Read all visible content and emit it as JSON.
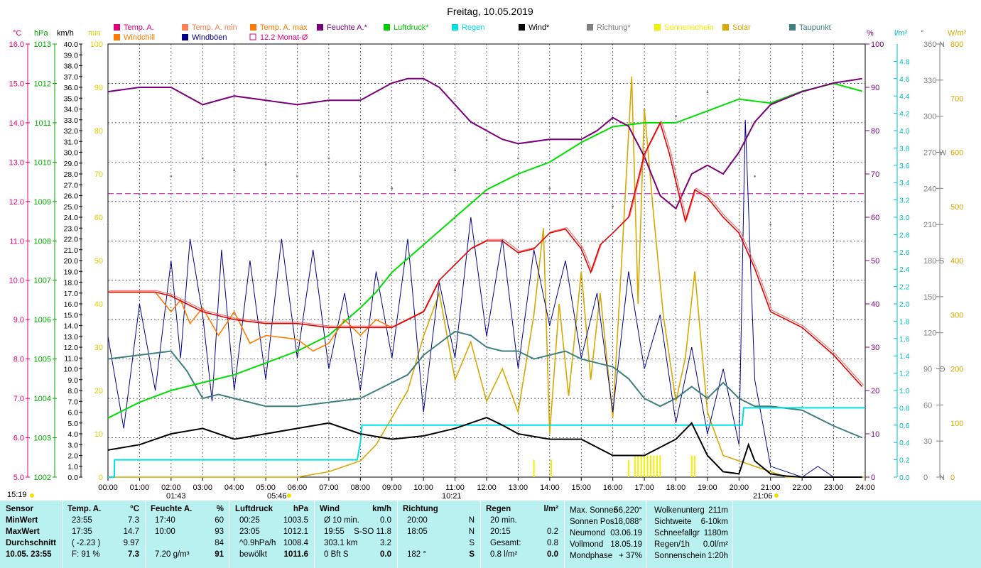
{
  "title": "Freitag, 10.05.2019",
  "legend": [
    {
      "label": "Temp. A.",
      "color": "#e0007c"
    },
    {
      "label": "Temp. A. min",
      "color": "#ff7f50"
    },
    {
      "label": "Temp. A. max",
      "color": "#ff7a00"
    },
    {
      "label": "Feuchte A.*",
      "color": "#7a007a"
    },
    {
      "label": "Luftdruck*",
      "color": "#00cc00"
    },
    {
      "label": "Regen",
      "color": "#00e0e0"
    },
    {
      "label": "Wind*",
      "color": "#000000"
    },
    {
      "label": "Richtung*",
      "color": "#808080"
    },
    {
      "label": "Sonnenschein",
      "color": "#f0f000"
    },
    {
      "label": "Solar",
      "color": "#d8a800"
    },
    {
      "label": "Taupunkt",
      "color": "#3f7f7f"
    },
    {
      "label": "Windchill",
      "color": "#ff7a00"
    },
    {
      "label": "Windböen",
      "color": "#00008b"
    },
    {
      "label": "12.2 Monat-Ø",
      "color": "#e0007c"
    }
  ],
  "units": {
    "temp": "°C",
    "press": "hPa",
    "wind": "km/h",
    "min": "min",
    "hum": "%",
    "rain": "l/m²",
    "dir": "°",
    "solar": "W/m²"
  },
  "axes": {
    "temp": [
      "16.0",
      "15.0",
      "14.0",
      "13.0",
      "12.0",
      "11.0",
      "10.0",
      "9.0",
      "8.0",
      "7.0",
      "6.0",
      "5.0"
    ],
    "press": [
      "1013",
      "1012",
      "1011",
      "1010",
      "1009",
      "1008",
      "1007",
      "1006",
      "1005",
      "1004",
      "1003",
      "1002"
    ],
    "wind": [
      "40.0",
      "39.0",
      "38.0",
      "37.0",
      "36.0",
      "35.0",
      "34.0",
      "33.0",
      "32.0",
      "31.0",
      "30.0",
      "29.0",
      "28.0",
      "27.0",
      "26.0",
      "25.0",
      "24.0",
      "23.0",
      "22.0",
      "21.0",
      "20.0",
      "19.0",
      "18.0",
      "17.0",
      "16.0",
      "15.0",
      "14.0",
      "13.0",
      "12.0",
      "11.0",
      "10.0",
      "9.0",
      "8.0",
      "7.0",
      "6.0",
      "5.0",
      "4.0",
      "3.0",
      "2.0",
      "1.0",
      "0.0"
    ],
    "minutes": [
      "100",
      "90",
      "80",
      "70",
      "60",
      "50",
      "40",
      "30",
      "20",
      "10",
      "0"
    ],
    "hum": [
      "100",
      "90",
      "80",
      "70",
      "60",
      "50",
      "40",
      "30",
      "20",
      "10",
      "0"
    ],
    "rain": [
      "4.8",
      "4.6",
      "4.4",
      "4.2",
      "4.0",
      "3.8",
      "3.6",
      "3.4",
      "3.2",
      "3.0",
      "2.8",
      "2.6",
      "2.4",
      "2.2",
      "2.0",
      "1.8",
      "1.6",
      "1.4",
      "1.2",
      "1.0",
      "0.8",
      "0.6",
      "0.4",
      "0.2",
      "0.0"
    ],
    "dir": [
      "360",
      "330",
      "300",
      "270",
      "240",
      "210",
      "180",
      "150",
      "120",
      "90",
      "60",
      "30",
      "0"
    ],
    "dir_letters": {
      "360": "N",
      "270": "W",
      "180": "S",
      "90": "O",
      "0": "N"
    },
    "solar": [
      "800",
      "700",
      "600",
      "500",
      "400",
      "300",
      "200",
      "100",
      "0"
    ],
    "time": [
      "00:00",
      "01:00",
      "02:00",
      "03:00",
      "04:00",
      "05:00",
      "06:00",
      "07:00",
      "08:00",
      "09:00",
      "10:00",
      "11:00",
      "12:00",
      "13:00",
      "14:00",
      "15:00",
      "16:00",
      "17:00",
      "18:00",
      "19:00",
      "20:00",
      "21:00",
      "22:00",
      "23:00",
      "24:00"
    ]
  },
  "markers": {
    "sunrise_prev": "15:19",
    "t1": "01:43",
    "t2": "05:46",
    "t3": "10:21",
    "t4": "21:06"
  },
  "chart_data": {
    "type": "line",
    "x_unit": "hour",
    "xlim": [
      0,
      24
    ],
    "series": [
      {
        "name": "Temp. A.",
        "axis": "temp",
        "x": [
          0,
          1.5,
          2.0,
          2.5,
          3.0,
          3.5,
          4.0,
          5.0,
          6.0,
          7.0,
          8.0,
          9.0,
          10.0,
          10.5,
          11.0,
          11.5,
          12.0,
          12.5,
          13.0,
          13.5,
          14.0,
          14.5,
          15.0,
          15.3,
          15.6,
          16.0,
          16.5,
          17.0,
          17.5,
          17.8,
          18.0,
          18.3,
          18.6,
          19.0,
          19.5,
          20.0,
          20.5,
          21.0,
          22.0,
          23.0,
          23.9
        ],
        "values": [
          9.7,
          9.7,
          9.6,
          9.4,
          9.2,
          9.1,
          9.0,
          8.9,
          8.9,
          8.8,
          8.8,
          8.8,
          9.2,
          10.0,
          10.4,
          10.8,
          11.0,
          11.0,
          10.7,
          10.8,
          11.2,
          11.3,
          10.8,
          10.2,
          10.9,
          11.2,
          11.6,
          13.2,
          14.0,
          13.2,
          12.5,
          11.5,
          12.3,
          12.1,
          11.6,
          11.2,
          10.3,
          9.2,
          8.8,
          8.1,
          7.3
        ]
      },
      {
        "name": "Windchill",
        "axis": "temp",
        "x": [
          0,
          1.5,
          2.0,
          2.3,
          2.6,
          3.0,
          3.5,
          4.0,
          4.5,
          5.0,
          6.0,
          6.5,
          7.0,
          7.5,
          8.0,
          8.5,
          9.0
        ],
        "values": [
          9.7,
          9.7,
          9.2,
          9.5,
          8.9,
          9.3,
          8.6,
          9.2,
          8.4,
          8.6,
          8.5,
          8.2,
          8.4,
          9.0,
          8.6,
          9.0,
          8.8
        ]
      },
      {
        "name": "Feuchte A.*",
        "axis": "hum",
        "x": [
          0,
          1,
          2,
          3,
          4,
          5,
          6,
          7,
          8,
          9,
          9.5,
          10,
          10.5,
          11,
          11.5,
          12,
          12.5,
          13,
          14,
          15,
          15.5,
          16,
          16.5,
          17,
          17.5,
          18,
          18.5,
          19,
          19.5,
          20,
          20.5,
          21,
          22,
          23,
          23.9
        ],
        "values": [
          89,
          90,
          90,
          86,
          88,
          87,
          86,
          87,
          87,
          91,
          92,
          92,
          90,
          86,
          82,
          80,
          78,
          77,
          78,
          78,
          80,
          83,
          81,
          74,
          65,
          62,
          70,
          72,
          70,
          75,
          82,
          86,
          89,
          91,
          92
        ]
      },
      {
        "name": "Luftdruck*",
        "axis": "press",
        "x": [
          0,
          1,
          2,
          3,
          4,
          5,
          6,
          7,
          8,
          8.5,
          9,
          10,
          11,
          12,
          13,
          14,
          15,
          16,
          17,
          18,
          19,
          20,
          21,
          22,
          23,
          23.9
        ],
        "values": [
          1003.5,
          1003.9,
          1004.2,
          1004.4,
          1004.6,
          1004.9,
          1005.2,
          1005.6,
          1006.3,
          1006.7,
          1007.2,
          1007.9,
          1008.6,
          1009.3,
          1009.7,
          1010.0,
          1010.5,
          1010.9,
          1011.0,
          1011.0,
          1011.3,
          1011.6,
          1011.5,
          1011.8,
          1012.0,
          1011.8
        ]
      },
      {
        "name": "Taupunkt",
        "axis": "temp",
        "x": [
          0,
          2,
          2.5,
          3,
          3.5,
          4,
          5,
          6,
          7,
          8,
          8.5,
          9,
          9.5,
          10,
          10.5,
          11,
          11.5,
          12,
          12.5,
          13,
          13.5,
          14,
          14.5,
          15,
          15.5,
          16,
          16.5,
          17,
          17.5,
          18,
          18.5,
          19,
          19.5,
          20,
          20.5,
          21,
          22,
          23,
          23.9
        ],
        "values": [
          8.0,
          8.2,
          7.7,
          7.0,
          7.1,
          7.0,
          6.8,
          6.8,
          6.9,
          7.0,
          7.2,
          7.4,
          7.6,
          8.1,
          8.4,
          8.7,
          8.6,
          8.3,
          8.2,
          8.2,
          8.0,
          8.1,
          8.2,
          8.0,
          7.9,
          7.8,
          7.5,
          7.0,
          6.8,
          7.0,
          7.3,
          7.0,
          7.4,
          7.0,
          6.8,
          6.8,
          6.7,
          6.3,
          6.0
        ]
      },
      {
        "name": "Wind*",
        "axis": "wind",
        "x": [
          0,
          1,
          2,
          3,
          4,
          5,
          6,
          7,
          8,
          9,
          10,
          11,
          12,
          12.5,
          13,
          14,
          15,
          16,
          17,
          18,
          18.5,
          19,
          19.5,
          20,
          20.3,
          20.5,
          21,
          21.5,
          22,
          23,
          23.9
        ],
        "values": [
          2.5,
          3.0,
          4.0,
          4.5,
          3.5,
          4.0,
          4.5,
          5.0,
          4.0,
          3.5,
          3.8,
          4.5,
          5.5,
          4.8,
          4.0,
          3.5,
          3.5,
          2.0,
          2.0,
          3.5,
          5.0,
          2.0,
          0.5,
          0.3,
          3.0,
          1.5,
          0.3,
          0.1,
          0.0,
          0.0,
          0.0
        ]
      },
      {
        "name": "Regen",
        "axis": "rain",
        "x": [
          0,
          0.2,
          0.21,
          7.9,
          8.0,
          8.05,
          20.1,
          20.15,
          24
        ],
        "values": [
          0.0,
          0.0,
          0.2,
          0.2,
          0.4,
          0.6,
          0.6,
          0.8,
          0.8
        ]
      },
      {
        "name": "Windböen",
        "axis": "wind",
        "x": [
          0,
          0.5,
          1.0,
          1.5,
          2.0,
          2.3,
          2.6,
          3.0,
          3.3,
          3.6,
          4.0,
          4.5,
          5.0,
          5.5,
          6.0,
          6.5,
          7.0,
          7.5,
          8.0,
          8.5,
          9.0,
          9.5,
          10.0,
          10.5,
          11.0,
          11.5,
          12.0,
          12.5,
          13.0,
          13.5,
          14.0,
          14.5,
          15.0,
          15.5,
          16.0,
          16.5,
          17.0,
          17.5,
          18.0,
          18.5,
          19.0,
          19.5,
          20.0,
          20.2,
          20.5,
          21.0,
          22.0,
          22.5,
          23.0,
          23.9
        ],
        "values": [
          13.0,
          4.5,
          16.0,
          8.0,
          20.0,
          11.0,
          22.0,
          15.0,
          7.0,
          21.0,
          8.0,
          20.0,
          9.0,
          22.0,
          11.0,
          21.0,
          10.0,
          17.0,
          8.0,
          19.0,
          11.0,
          22.0,
          6.0,
          18.0,
          11.0,
          24.0,
          13.0,
          22.0,
          10.0,
          21.0,
          14.0,
          20.0,
          11.0,
          17.0,
          6.0,
          19.0,
          10.0,
          15.0,
          5.0,
          12.0,
          4.0,
          10.0,
          3.0,
          33.0,
          9.0,
          1.0,
          0.0,
          1.0,
          0.0,
          0.0
        ]
      },
      {
        "name": "Solar",
        "axis": "solar",
        "x": [
          0,
          6.0,
          7.0,
          7.5,
          8.0,
          8.5,
          9.0,
          9.5,
          10.0,
          10.5,
          11.0,
          11.5,
          12.0,
          12.5,
          13.0,
          13.5,
          13.8,
          14.0,
          14.3,
          14.6,
          15.0,
          15.3,
          15.6,
          16.0,
          16.3,
          16.6,
          16.8,
          17.0,
          17.3,
          17.6,
          18.0,
          18.3,
          18.6,
          19.0,
          19.5,
          20.0,
          20.5,
          21.0,
          21.5,
          24
        ],
        "values": [
          0,
          0,
          10,
          20,
          30,
          60,
          110,
          160,
          260,
          340,
          180,
          250,
          140,
          200,
          120,
          300,
          460,
          80,
          320,
          150,
          380,
          180,
          340,
          110,
          420,
          740,
          320,
          680,
          480,
          300,
          140,
          220,
          380,
          120,
          40,
          30,
          20,
          10,
          0,
          0
        ]
      },
      {
        "name": "Richtung*",
        "axis": "dir",
        "x": [
          0,
          1,
          2,
          3,
          4,
          5,
          6,
          7,
          8,
          9,
          10,
          11,
          12,
          13,
          14,
          15,
          16,
          17,
          18,
          19,
          20,
          20.5,
          21
        ],
        "values": [
          210,
          235,
          250,
          265,
          255,
          260,
          250,
          265,
          250,
          240,
          235,
          255,
          280,
          265,
          240,
          235,
          225,
          305,
          300,
          320,
          330,
          250,
          210
        ]
      }
    ],
    "bars": {
      "name": "Sonnenschein",
      "axis": "minutes",
      "x": [
        13.5,
        14.05,
        16.5,
        16.7,
        16.8,
        16.9,
        17.0,
        17.1,
        17.2,
        17.3,
        17.4,
        17.5,
        18.5,
        18.6
      ],
      "values": [
        4,
        4,
        4,
        5,
        5,
        5,
        5,
        5,
        5,
        5,
        5,
        5,
        5,
        5
      ]
    },
    "month_avg": {
      "name": "12.2 Monat-Ø",
      "axis": "temp",
      "value": 12.2
    }
  },
  "stats": {
    "sensor": {
      "header": "Sensor",
      "rows": [
        "MinWert",
        "MaxWert",
        "Durchschnitt",
        "10.05. 23:55"
      ]
    },
    "temp": {
      "header": "Temp. A.",
      "unit": "°C",
      "rows": [
        [
          "23:55",
          "7.3"
        ],
        [
          "17:35",
          "14.7"
        ],
        [
          "( -2.23 )",
          "9.97"
        ],
        [
          "F: 91 %",
          "7.3"
        ]
      ]
    },
    "hum": {
      "header": "Feuchte A.",
      "unit": "%",
      "rows": [
        [
          "17:40",
          "60"
        ],
        [
          "10:00",
          "93"
        ],
        [
          "",
          "84"
        ],
        [
          "7.20 g/m³",
          "91"
        ]
      ]
    },
    "press": {
      "header": "Luftdruck",
      "unit": "hPa",
      "rows": [
        [
          "00:25",
          "1003.5"
        ],
        [
          "23:05",
          "1012.1"
        ],
        [
          "^0.9hPa/h",
          "1008.4"
        ],
        [
          "bewölkt",
          "1011.6"
        ]
      ]
    },
    "wind": {
      "header": "Wind",
      "unit": "km/h",
      "rows": [
        [
          "Ø 10 min.",
          "0.0"
        ],
        [
          "19:55",
          "S-SO 11.8"
        ],
        [
          "303.1 km",
          "3.2"
        ],
        [
          "0 Bft S",
          "0.0"
        ]
      ]
    },
    "dir": {
      "header": "Richtung",
      "rows": [
        [
          "20:00",
          "N"
        ],
        [
          "18:05",
          "N"
        ],
        [
          "",
          "S"
        ],
        [
          "182 °",
          "S"
        ]
      ]
    },
    "rain": {
      "header": "Regen",
      "unit": "l/m²",
      "rows": [
        [
          "20 min.",
          ""
        ],
        [
          "20:15",
          "0.2"
        ],
        [
          "Gesamt:",
          "0.8"
        ],
        [
          "0.8 l/m²",
          "0.0"
        ]
      ]
    },
    "astro": {
      "rows": [
        [
          "Max. Sonnen",
          "56,220°"
        ],
        [
          "Sonnen Pos",
          "-18,088°"
        ],
        [
          "Neumond",
          "03.06.19"
        ],
        [
          "Vollmond",
          "18.05.19"
        ],
        [
          "Mondphase",
          "+ 37%"
        ]
      ]
    },
    "misc": {
      "rows": [
        [
          "Wolkenunterg",
          "211m"
        ],
        [
          "Sichtweite",
          "6-10km"
        ],
        [
          "Schneefallgr",
          "1180m"
        ],
        [
          "Regen/1h",
          "0.0l/m²"
        ],
        [
          "Sonnenschein",
          "1:20h"
        ]
      ]
    }
  }
}
